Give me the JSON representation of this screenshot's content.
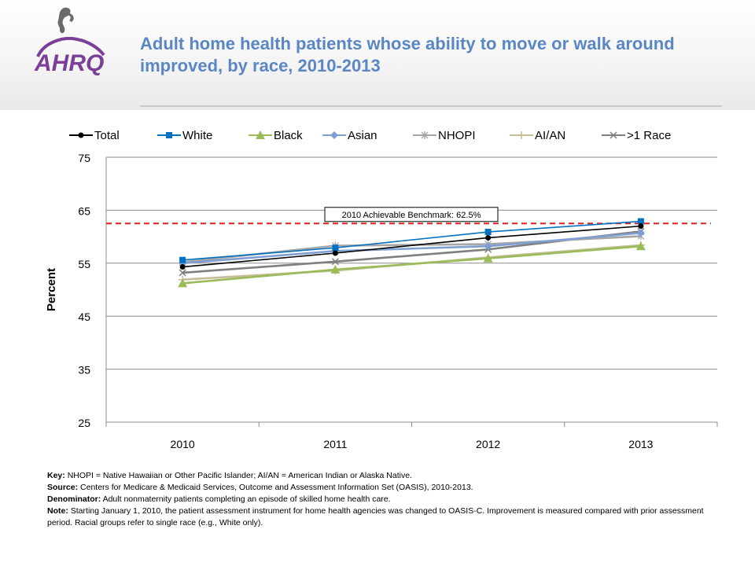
{
  "title": "Adult home health patients whose ability to move or walk around improved, by race, 2010-2013",
  "logo": {
    "text": "AHRQ"
  },
  "chart_data": {
    "type": "line",
    "categories": [
      "2010",
      "2011",
      "2012",
      "2013"
    ],
    "series": [
      {
        "name": "Total",
        "color": "#000000",
        "marker": "circle",
        "values": [
          54.3,
          56.9,
          59.8,
          62.0
        ]
      },
      {
        "name": "White",
        "color": "#0070c0",
        "marker": "square",
        "values": [
          55.6,
          57.9,
          60.9,
          62.9
        ]
      },
      {
        "name": "Black",
        "color": "#9bbb59",
        "marker": "triangle",
        "values": [
          51.2,
          53.8,
          55.9,
          58.2
        ]
      },
      {
        "name": "Asian",
        "color": "#7f9fd4",
        "marker": "diamond",
        "values": [
          55.0,
          57.3,
          58.2,
          60.7
        ]
      },
      {
        "name": "NHOPI",
        "color": "#a6a6a6",
        "marker": "asterisk",
        "values": [
          55.2,
          58.3,
          58.6,
          60.1
        ]
      },
      {
        "name": "AI/AN",
        "color": "#c4bd97",
        "marker": "plus",
        "values": [
          51.9,
          53.6,
          56.1,
          58.4
        ]
      },
      {
        "name": ">1 Race",
        "color": "#7f7f7f",
        "marker": "x",
        "values": [
          53.2,
          55.3,
          57.6,
          61.0
        ]
      }
    ],
    "ylabel": "Percent",
    "ylim": [
      25,
      75
    ],
    "yticks": [
      25,
      35,
      45,
      55,
      65,
      75
    ],
    "grid": true,
    "legend_position": "top",
    "benchmark": {
      "value": 62.5,
      "label": "2010 Achievable Benchmark:  62.5%",
      "color": "#e02020"
    }
  },
  "notes": {
    "key_label": "Key:",
    "key_text": "NHOPI = Native Hawaiian or Other Pacific Islander; AI/AN = American Indian or Alaska Native.",
    "source_label": "Source:",
    "source_text": "Centers for Medicare & Medicaid Services, Outcome and Assessment Information Set (OASIS), 2010-2013.",
    "denominator_label": "Denominator:",
    "denominator_text": "Adult nonmaternity patients completing an episode of skilled home health care.",
    "note_label": "Note:",
    "note_text": "Starting January 1, 2010, the patient assessment instrument for home health agencies was changed to OASIS-C.  Improvement is measured compared with prior assessment period. Racial groups refer to single race (e.g., White only)."
  }
}
